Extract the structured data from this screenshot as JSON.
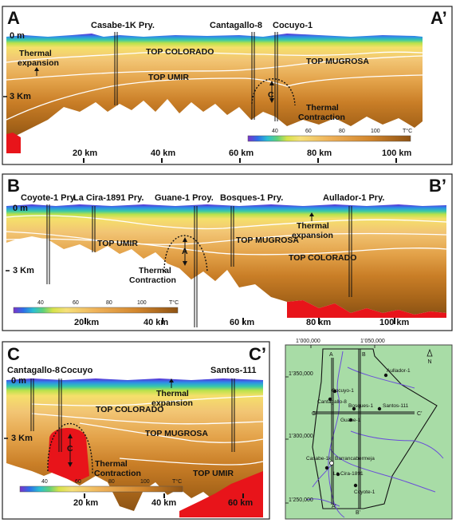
{
  "colors": {
    "accent_dark": "#7a4d10",
    "hot_red": "#e8141a",
    "map_bg": "#a8dca6",
    "river": "#6a4fd8"
  },
  "panel_a": {
    "label_left": "A",
    "label_right": "A’",
    "wells": [
      "Casabe-1K Pry.",
      "Cantagallo-8",
      "Cocuyo-1"
    ],
    "depth_top": "0 m",
    "depth_3km": "3 Km",
    "horizons": [
      "TOP COLORADO",
      "TOP MUGROSA",
      "TOP UMIR"
    ],
    "thermal_exp_1": "Thermal",
    "thermal_exp_2": "expansion",
    "thermal_con_1": "Thermal",
    "thermal_con_2": "Contraction",
    "anomaly": "C",
    "xticks": [
      "20 km",
      "40 km",
      "60 km",
      "80 km",
      "100 km"
    ],
    "colorbar_ticks": [
      "40",
      "60",
      "80",
      "100",
      "T°C"
    ]
  },
  "panel_b": {
    "label_left": "B",
    "label_right": "B’",
    "wells": [
      "Coyote-1 Pry.",
      "La Cira-1891 Pry.",
      "Guane-1 Proy.",
      "Bosques-1 Pry.",
      "Aullador-1 Pry."
    ],
    "depth_top": "0 m",
    "depth_3km": "3 Km",
    "horizons": [
      "TOP UMIR",
      "TOP MUGROSA",
      "TOP COLORADO"
    ],
    "thermal_exp_1": "Thermal",
    "thermal_exp_2": "expansion",
    "thermal_con_1": "Thermal",
    "thermal_con_2": "Contraction",
    "anomaly": "A",
    "xticks": [
      "20 km",
      "40 km",
      "60 km",
      "80 km",
      "100 km"
    ],
    "colorbar_ticks": [
      "40",
      "60",
      "80",
      "100",
      "T°C"
    ]
  },
  "panel_c": {
    "label_left": "C",
    "label_right": "C’",
    "wells": [
      "Cantagallo-8",
      "Cocuyo",
      "Santos-111"
    ],
    "depth_top": "0 m",
    "depth_3km": "3 Km",
    "horizons": [
      "TOP COLORADO",
      "TOP MUGROSA",
      "TOP UMIR"
    ],
    "thermal_exp_1": "Thermal",
    "thermal_exp_2": "expansion",
    "thermal_con_1": "Thermal",
    "thermal_con_2": "Contraction",
    "anomaly": "C",
    "xticks": [
      "20 km",
      "40 km",
      "60 km"
    ],
    "colorbar_ticks": [
      "40",
      "60",
      "80",
      "100",
      "T°C"
    ]
  },
  "map": {
    "x_coords": [
      "1’000,000",
      "1’050,000"
    ],
    "y_coords": [
      "1’350,000",
      "1’300,000",
      "1’250,000"
    ],
    "north": "N",
    "section_labels": {
      "a": "A",
      "a2": "A’",
      "b": "B",
      "b2": "B’",
      "c": "C",
      "c2": "C’"
    },
    "wells": [
      "Aullador-1",
      "Cocuyo-1",
      "Cantagallo-8",
      "Bosques-1",
      "Santos-111",
      "Guane-1",
      "Casabe-1k",
      "Barrancabermeja",
      "La Cira-1891",
      "Coyote-1"
    ]
  }
}
